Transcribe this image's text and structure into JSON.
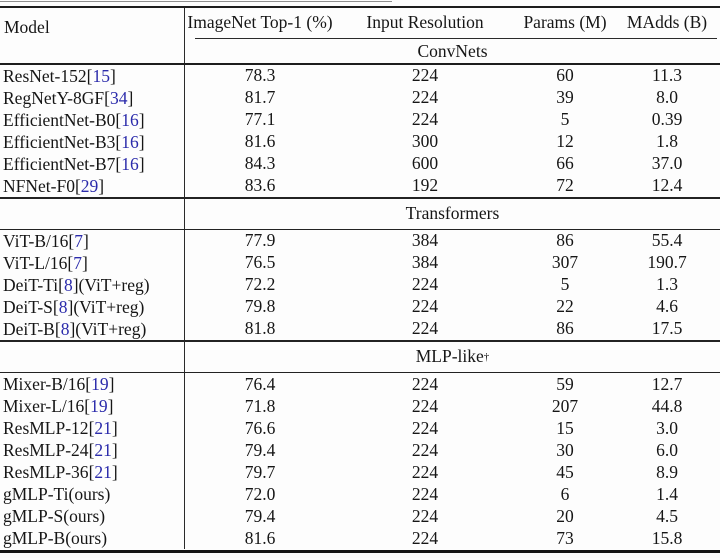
{
  "table": {
    "columns": [
      "Model",
      "ImageNet Top-1 (%)",
      "Input Resolution",
      "Params (M)",
      "MAdds (B)"
    ],
    "citation": {
      "open": " [",
      "close": "]"
    },
    "sections": [
      {
        "label": "ConvNets",
        "rows": [
          {
            "name": "ResNet-152",
            "cite": "15",
            "top1": "78.3",
            "res": "224",
            "params": "60",
            "madds": "11.3"
          },
          {
            "name": "RegNetY-8GF",
            "cite": "34",
            "top1": "81.7",
            "res": "224",
            "params": "39",
            "madds": "8.0"
          },
          {
            "name": "EfficientNet-B0",
            "cite": "16",
            "top1": "77.1",
            "res": "224",
            "params": "5",
            "madds": "0.39"
          },
          {
            "name": "EfficientNet-B3",
            "cite": "16",
            "top1": "81.6",
            "res": "300",
            "params": "12",
            "madds": "1.8"
          },
          {
            "name": "EfficientNet-B7",
            "cite": "16",
            "top1": "84.3",
            "res": "600",
            "params": "66",
            "madds": "37.0"
          },
          {
            "name": "NFNet-F0",
            "cite": "29",
            "top1": "83.6",
            "res": "192",
            "params": "72",
            "madds": "12.4"
          }
        ]
      },
      {
        "label": "Transformers",
        "rows": [
          {
            "name": "ViT-B/16",
            "cite": "7",
            "top1": "77.9",
            "res": "384",
            "params": "86",
            "madds": "55.4"
          },
          {
            "name": "ViT-L/16",
            "cite": "7",
            "top1": "76.5",
            "res": "384",
            "params": "307",
            "madds": "190.7"
          },
          {
            "name": "DeiT-Ti",
            "cite": "8",
            "suffix": " (ViT+reg)",
            "top1": "72.2",
            "res": "224",
            "params": "5",
            "madds": "1.3"
          },
          {
            "name": "DeiT-S",
            "cite": "8",
            "suffix": " (ViT+reg)",
            "top1": "79.8",
            "res": "224",
            "params": "22",
            "madds": "4.6"
          },
          {
            "name": "DeiT-B",
            "cite": "8",
            "suffix": " (ViT+reg)",
            "top1": "81.8",
            "res": "224",
            "params": "86",
            "madds": "17.5"
          }
        ]
      },
      {
        "label": "MLP-like",
        "superscript": "†",
        "rows": [
          {
            "name": "Mixer-B/16",
            "cite": "19",
            "top1": "76.4",
            "res": "224",
            "params": "59",
            "madds": "12.7"
          },
          {
            "name": "Mixer-L/16",
            "cite": "19",
            "top1": "71.8",
            "res": "224",
            "params": "207",
            "madds": "44.8"
          },
          {
            "name": "ResMLP-12",
            "cite": "21",
            "top1": "76.6",
            "res": "224",
            "params": "15",
            "madds": "3.0"
          },
          {
            "name": "ResMLP-24",
            "cite": "21",
            "top1": "79.4",
            "res": "224",
            "params": "30",
            "madds": "6.0"
          },
          {
            "name": "ResMLP-36",
            "cite": "21",
            "top1": "79.7",
            "res": "224",
            "params": "45",
            "madds": "8.9"
          },
          {
            "name": "gMLP-Ti",
            "suffix": " (ours)",
            "top1": "72.0",
            "res": "224",
            "params": "6",
            "madds": "1.4"
          },
          {
            "name": "gMLP-S",
            "suffix": " (ours)",
            "top1": "79.4",
            "res": "224",
            "params": "20",
            "madds": "4.5"
          },
          {
            "name": "gMLP-B",
            "suffix": " (ours)",
            "top1": "81.6",
            "res": "224",
            "params": "73",
            "madds": "15.8"
          }
        ]
      }
    ]
  },
  "colors": {
    "citation_blue": "#2b2bab",
    "text": "#161616",
    "rule": "#1d1d1d",
    "background": "#fdfdfd"
  }
}
